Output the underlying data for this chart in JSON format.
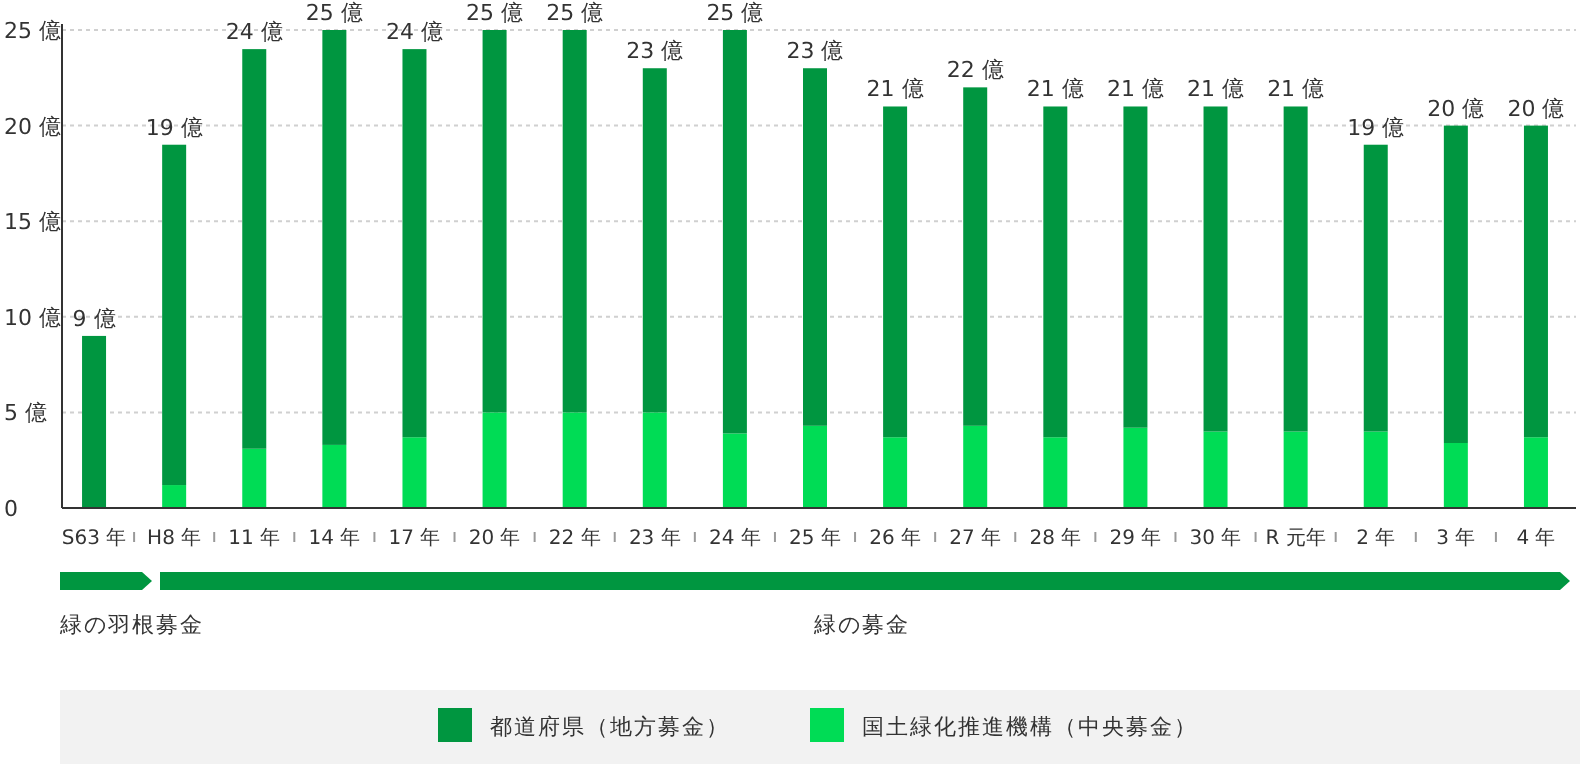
{
  "chart_data": {
    "type": "bar",
    "stacked": true,
    "categories": [
      "S63 年",
      "H8 年",
      "11 年",
      "14 年",
      "17 年",
      "20 年",
      "22 年",
      "23 年",
      "24 年",
      "25 年",
      "26 年",
      "27 年",
      "28 年",
      "29 年",
      "30 年",
      "R 元年",
      "2 年",
      "3 年",
      "4 年"
    ],
    "series": [
      {
        "name": "国土緑化推進機構（中央募金）",
        "color": "#00dc55",
        "values": [
          0,
          1.2,
          3.1,
          3.3,
          3.7,
          5.0,
          5.0,
          5.0,
          3.9,
          4.3,
          3.7,
          4.3,
          3.7,
          4.2,
          4.0,
          4.0,
          4.0,
          3.4,
          3.7
        ]
      },
      {
        "name": "都道府県（地方募金）",
        "color": "#009640",
        "values": [
          9,
          17.8,
          20.9,
          21.7,
          20.3,
          20,
          20,
          18,
          21.1,
          18.7,
          17.3,
          17.7,
          17.3,
          16.8,
          17,
          17,
          15,
          16.6,
          16.3
        ]
      }
    ],
    "totals": [
      "9 億",
      "19 億",
      "24 億",
      "25 億",
      "24 億",
      "25 億",
      "25 億",
      "23 億",
      "25 億",
      "23 億",
      "21 億",
      "22 億",
      "21 億",
      "21 億",
      "21 億",
      "21 億",
      "19 億",
      "20 億",
      "20 億"
    ],
    "ylim": [
      0,
      25
    ],
    "yticks": [
      0,
      {
        "value": 5,
        "label": "5 億"
      },
      {
        "value": 10,
        "label": "10 億"
      },
      {
        "value": 15,
        "label": "15 億"
      },
      {
        "value": 20,
        "label": "20 億"
      },
      {
        "value": 25,
        "label": "25 億"
      }
    ],
    "grid": "y",
    "legend": "bottom",
    "annotations": [
      "緑の羽根募金",
      "緑の募金"
    ]
  }
}
